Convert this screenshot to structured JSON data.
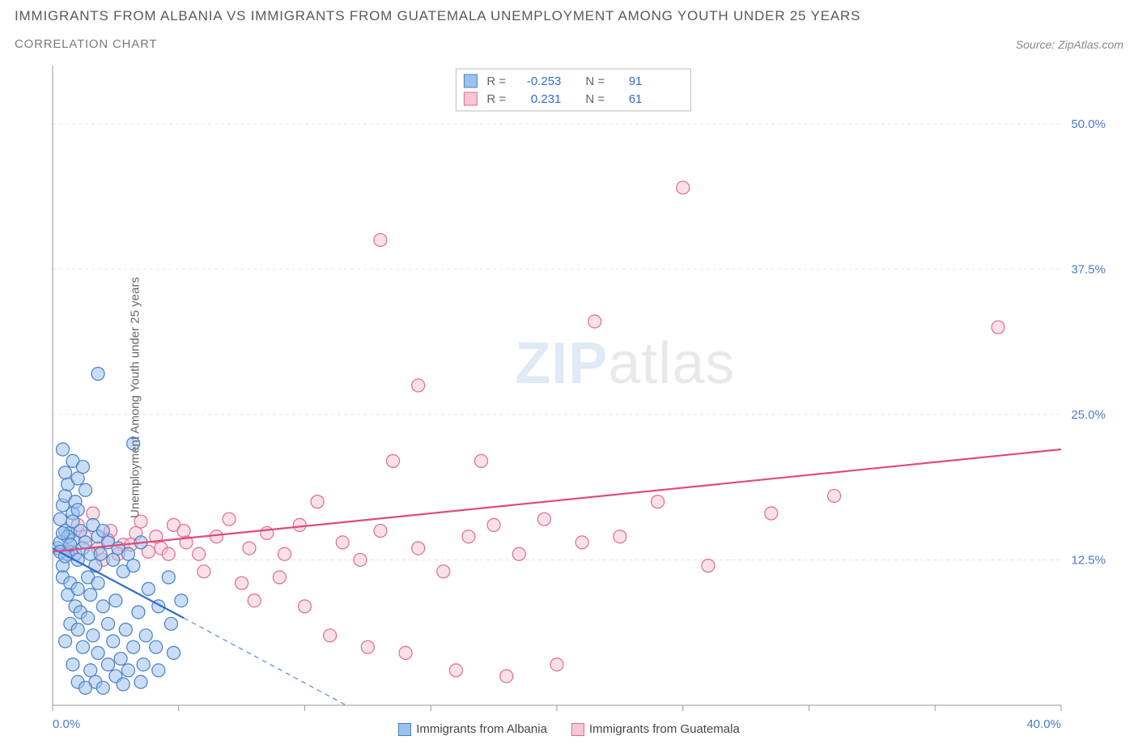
{
  "header": {
    "title": "Immigrants from Albania vs Immigrants from Guatemala Unemployment Among Youth under 25 years",
    "subtitle": "Correlation Chart",
    "source_label": "Source: ZipAtlas.com"
  },
  "chart": {
    "type": "scatter",
    "ylabel": "Unemployment Among Youth under 25 years",
    "xlim": [
      0,
      40
    ],
    "ylim": [
      0,
      55
    ],
    "xtick_start": 0,
    "xtick_end": 40,
    "xtick_step": 5,
    "ytick_values": [
      12.5,
      25.0,
      37.5,
      50.0
    ],
    "xaxis_label_left": "0.0%",
    "xaxis_label_right": "40.0%",
    "ytick_labels": [
      "12.5%",
      "25.0%",
      "37.5%",
      "50.0%"
    ],
    "background_color": "#ffffff",
    "grid_color": "#e5e5e5",
    "axis_color": "#999999",
    "tick_label_color": "#4a7bc8",
    "marker_radius": 8,
    "marker_opacity": 0.55,
    "trend_line_width": 2.2,
    "watermark_text_1": "ZIP",
    "watermark_text_2": "atlas"
  },
  "stats_legend": {
    "series_a": {
      "r_label": "R =",
      "r_value": "-0.253",
      "n_label": "N =",
      "n_value": "91"
    },
    "series_b": {
      "r_label": "R =",
      "r_value": "0.231",
      "n_label": "N =",
      "n_value": "61"
    },
    "text_color": "#666666",
    "value_color": "#2f6bd0",
    "border_color": "#bdbdbd",
    "background_color": "#ffffff"
  },
  "series": {
    "albania": {
      "label": "Immigrants from Albania",
      "fill_color": "#9cc1ec",
      "stroke_color": "#4a7fc5",
      "trend_color": "#2f6bd0",
      "trend": {
        "x1": 0,
        "y1": 13.5,
        "x2_solid": 5.2,
        "y2_solid": 7.5,
        "x2_dash": 12.5,
        "y2_dash": -1.0
      },
      "points": [
        [
          0.2,
          13.5
        ],
        [
          0.3,
          14.0
        ],
        [
          0.4,
          12.0
        ],
        [
          0.5,
          15.0
        ],
        [
          0.6,
          13.0
        ],
        [
          0.7,
          14.8
        ],
        [
          0.3,
          16.0
        ],
        [
          0.4,
          17.2
        ],
        [
          0.8,
          14.2
        ],
        [
          0.9,
          13.0
        ],
        [
          0.5,
          18.0
        ],
        [
          0.8,
          16.5
        ],
        [
          1.0,
          12.5
        ],
        [
          1.1,
          15.0
        ],
        [
          0.6,
          19.0
        ],
        [
          1.2,
          13.5
        ],
        [
          0.4,
          11.0
        ],
        [
          0.7,
          10.5
        ],
        [
          1.3,
          14.0
        ],
        [
          0.9,
          17.5
        ],
        [
          1.0,
          19.5
        ],
        [
          1.5,
          13.0
        ],
        [
          1.6,
          15.5
        ],
        [
          0.5,
          20.0
        ],
        [
          0.8,
          21.0
        ],
        [
          1.2,
          20.5
        ],
        [
          1.7,
          12.0
        ],
        [
          1.8,
          14.5
        ],
        [
          0.6,
          9.5
        ],
        [
          0.9,
          8.5
        ],
        [
          1.0,
          10.0
        ],
        [
          1.4,
          11.0
        ],
        [
          1.9,
          13.0
        ],
        [
          2.0,
          15.0
        ],
        [
          2.2,
          14.0
        ],
        [
          0.7,
          7.0
        ],
        [
          1.1,
          8.0
        ],
        [
          1.5,
          9.5
        ],
        [
          1.8,
          10.5
        ],
        [
          2.4,
          12.5
        ],
        [
          0.4,
          22.0
        ],
        [
          1.3,
          18.5
        ],
        [
          2.6,
          13.5
        ],
        [
          1.0,
          6.5
        ],
        [
          1.4,
          7.5
        ],
        [
          2.0,
          8.5
        ],
        [
          2.8,
          11.5
        ],
        [
          3.0,
          13.0
        ],
        [
          1.6,
          6.0
        ],
        [
          2.2,
          7.0
        ],
        [
          2.5,
          9.0
        ],
        [
          3.2,
          12.0
        ],
        [
          3.5,
          14.0
        ],
        [
          0.5,
          5.5
        ],
        [
          1.2,
          5.0
        ],
        [
          1.8,
          4.5
        ],
        [
          2.4,
          5.5
        ],
        [
          2.9,
          6.5
        ],
        [
          3.4,
          8.0
        ],
        [
          3.8,
          10.0
        ],
        [
          0.8,
          3.5
        ],
        [
          1.5,
          3.0
        ],
        [
          2.2,
          3.5
        ],
        [
          2.7,
          4.0
        ],
        [
          3.2,
          5.0
        ],
        [
          3.7,
          6.0
        ],
        [
          4.2,
          8.5
        ],
        [
          4.6,
          11.0
        ],
        [
          1.0,
          2.0
        ],
        [
          1.7,
          2.0
        ],
        [
          2.5,
          2.5
        ],
        [
          3.0,
          3.0
        ],
        [
          3.6,
          3.5
        ],
        [
          4.1,
          5.0
        ],
        [
          4.7,
          7.0
        ],
        [
          5.1,
          9.0
        ],
        [
          1.3,
          1.5
        ],
        [
          2.0,
          1.5
        ],
        [
          2.8,
          1.8
        ],
        [
          3.5,
          2.0
        ],
        [
          4.2,
          3.0
        ],
        [
          4.8,
          4.5
        ],
        [
          1.8,
          28.5
        ],
        [
          3.2,
          22.5
        ],
        [
          0.3,
          13.2
        ],
        [
          0.5,
          12.8
        ],
        [
          0.6,
          14.5
        ],
        [
          0.8,
          15.8
        ],
        [
          1.0,
          16.8
        ],
        [
          0.4,
          14.8
        ],
        [
          0.7,
          13.8
        ]
      ]
    },
    "guatemala": {
      "label": "Immigrants from Guatemala",
      "fill_color": "#f5c7d4",
      "stroke_color": "#e06b8f",
      "trend_color": "#e04a7a",
      "trend": {
        "x1": 0,
        "y1": 13.2,
        "x2": 40,
        "y2": 22.0
      },
      "points": [
        [
          0.7,
          13.2
        ],
        [
          1.3,
          14.5
        ],
        [
          1.8,
          13.5
        ],
        [
          2.3,
          15.0
        ],
        [
          2.8,
          13.8
        ],
        [
          3.3,
          14.8
        ],
        [
          3.8,
          13.2
        ],
        [
          1.0,
          15.5
        ],
        [
          1.6,
          16.5
        ],
        [
          2.2,
          14.2
        ],
        [
          4.3,
          13.5
        ],
        [
          4.8,
          15.5
        ],
        [
          5.3,
          14.0
        ],
        [
          5.8,
          13.0
        ],
        [
          2.0,
          12.5
        ],
        [
          2.6,
          13.0
        ],
        [
          3.1,
          13.8
        ],
        [
          6.5,
          14.5
        ],
        [
          7.0,
          16.0
        ],
        [
          7.8,
          13.5
        ],
        [
          3.5,
          15.8
        ],
        [
          4.1,
          14.5
        ],
        [
          8.5,
          14.8
        ],
        [
          9.2,
          13.0
        ],
        [
          9.8,
          15.5
        ],
        [
          4.6,
          13.0
        ],
        [
          5.2,
          15.0
        ],
        [
          10.5,
          17.5
        ],
        [
          11.5,
          14.0
        ],
        [
          12.2,
          12.5
        ],
        [
          6.0,
          11.5
        ],
        [
          7.5,
          10.5
        ],
        [
          9.0,
          11.0
        ],
        [
          13.0,
          15.0
        ],
        [
          13.5,
          21.0
        ],
        [
          14.5,
          13.5
        ],
        [
          8.0,
          9.0
        ],
        [
          10.0,
          8.5
        ],
        [
          15.5,
          11.5
        ],
        [
          16.5,
          14.5
        ],
        [
          11.0,
          6.0
        ],
        [
          12.5,
          5.0
        ],
        [
          17.5,
          15.5
        ],
        [
          18.5,
          13.0
        ],
        [
          14.0,
          4.5
        ],
        [
          19.5,
          16.0
        ],
        [
          21.0,
          14.0
        ],
        [
          16.0,
          3.0
        ],
        [
          22.5,
          14.5
        ],
        [
          24.0,
          17.5
        ],
        [
          18.0,
          2.5
        ],
        [
          26.0,
          12.0
        ],
        [
          20.0,
          3.5
        ],
        [
          28.5,
          16.5
        ],
        [
          31.0,
          18.0
        ],
        [
          14.5,
          27.5
        ],
        [
          17.0,
          21.0
        ],
        [
          13.0,
          40.0
        ],
        [
          21.5,
          33.0
        ],
        [
          25.0,
          44.5
        ],
        [
          37.5,
          32.5
        ]
      ]
    }
  }
}
